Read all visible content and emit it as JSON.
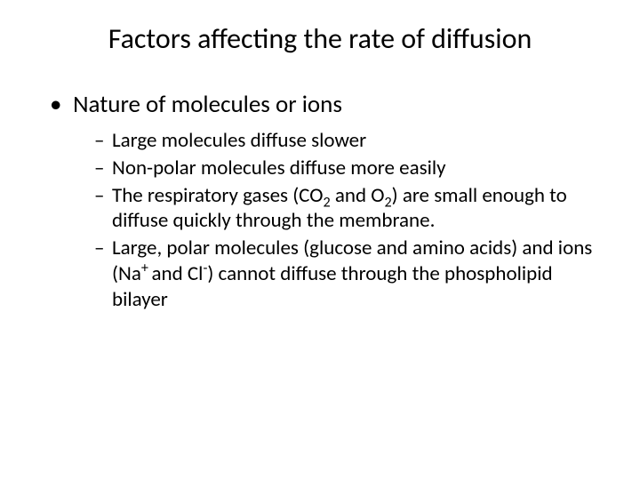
{
  "slide": {
    "background_color": "#ffffff",
    "text_color": "#000000",
    "font_family": "Calibri",
    "title": {
      "text": "Factors affecting the rate of diffusion",
      "fontsize": 32,
      "weight": 400,
      "align": "center"
    },
    "level1": {
      "marker": "•",
      "fontsize": 27,
      "items": [
        {
          "text": "Nature of molecules or ions"
        }
      ]
    },
    "level2": {
      "marker": "–",
      "fontsize": 23,
      "items": [
        {
          "pre": "Large molecules diffuse slower"
        },
        {
          "pre": "Non-polar molecules diffuse more easily"
        },
        {
          "pre": "The respiratory gases (CO",
          "sub1": "2",
          "mid1": " and O",
          "sub2": "2",
          "post": ") are small enough to diffuse quickly through the membrane."
        },
        {
          "pre": "Large, polar molecules (glucose and amino acids) and ions (Na",
          "sup1": "+ ",
          "mid1": "and Cl",
          "sup2": "-",
          "post": ") cannot diffuse through the phospholipid bilayer"
        }
      ]
    }
  }
}
